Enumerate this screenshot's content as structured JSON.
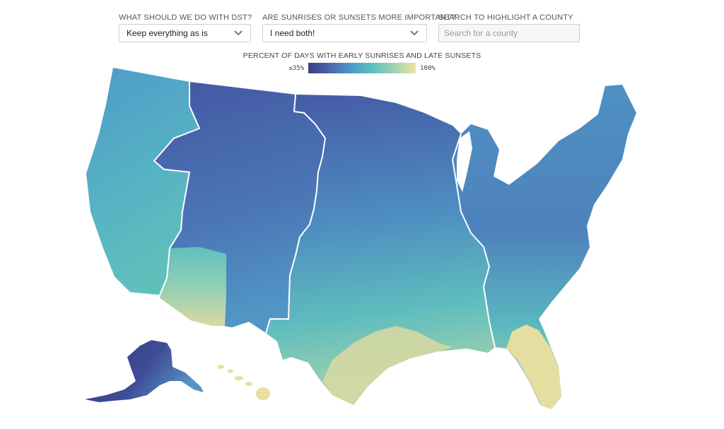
{
  "controls": {
    "dst": {
      "label": "WHAT SHOULD WE DO WITH DST?",
      "value": "Keep everything as is"
    },
    "priority": {
      "label": "ARE SUNRISES OR SUNSETS MORE IMPORTANT?",
      "value": "I need both!"
    },
    "search": {
      "label": "SEARCH TO HIGHLIGHT A COUNTY",
      "placeholder": "Search for a county",
      "value": ""
    }
  },
  "legend": {
    "title": "PERCENT OF DAYS WITH EARLY SUNRISES AND LATE SUNSETS",
    "min_label": "≤35%",
    "max_label": "100%",
    "colors": [
      "#3b3b82",
      "#4e66ae",
      "#4f98c6",
      "#5dc1be",
      "#9fd4b2",
      "#eee3a2"
    ]
  },
  "icons": {
    "dropdown": "chevron-down-icon"
  },
  "map": {
    "regions": [
      "contiguous-united-states",
      "pacific-time-zone",
      "mountain-time-zone",
      "central-time-zone",
      "eastern-time-zone",
      "alaska",
      "hawaii"
    ],
    "colors": {
      "dark": "#3e4790",
      "blue": "#4b72b4",
      "mid": "#519bc7",
      "teal": "#62c0bc",
      "sand": "#e8dfa0",
      "border": "#ffffff"
    }
  }
}
